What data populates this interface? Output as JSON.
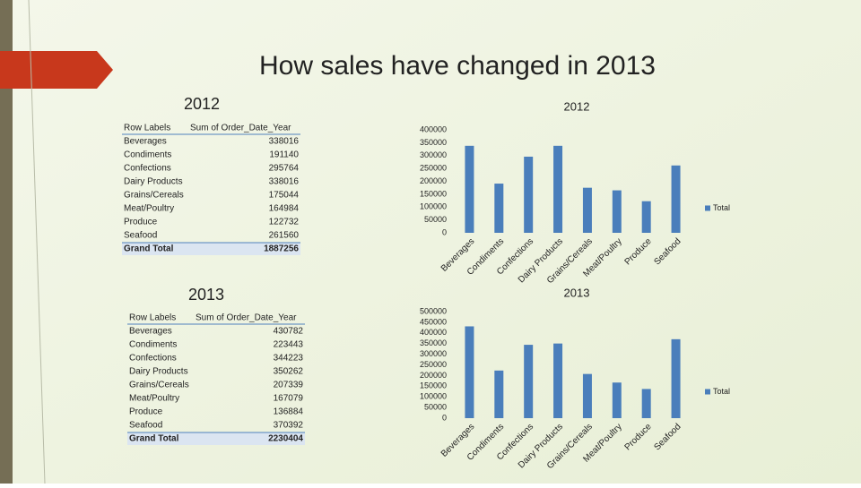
{
  "title": "How sales have changed in 2013",
  "tables": [
    {
      "heading": "2012",
      "header": [
        "Row Labels",
        "Sum of Order_Date_Year"
      ],
      "rows": [
        [
          "Beverages",
          338016
        ],
        [
          "Condiments",
          191140
        ],
        [
          "Confections",
          295764
        ],
        [
          "Dairy Products",
          338016
        ],
        [
          "Grains/Cereals",
          175044
        ],
        [
          "Meat/Poultry",
          164984
        ],
        [
          "Produce",
          122732
        ],
        [
          "Seafood",
          261560
        ],
        [
          "Grand Total",
          1887256
        ]
      ]
    },
    {
      "heading": "2013",
      "header": [
        "Row Labels",
        "Sum of Order_Date_Year"
      ],
      "rows": [
        [
          "Beverages",
          430782
        ],
        [
          "Condiments",
          223443
        ],
        [
          "Confections",
          344223
        ],
        [
          "Dairy Products",
          350262
        ],
        [
          "Grains/Cereals",
          207339
        ],
        [
          "Meat/Poultry",
          167079
        ],
        [
          "Produce",
          136884
        ],
        [
          "Seafood",
          370392
        ],
        [
          "Grand Total",
          2230404
        ]
      ]
    }
  ],
  "chart_data": [
    {
      "type": "bar",
      "title": "2012",
      "categories": [
        "Beverages",
        "Condiments",
        "Confections",
        "Dairy Products",
        "Grains/Cereals",
        "Meat/Poultry",
        "Produce",
        "Seafood"
      ],
      "series": [
        {
          "name": "Total",
          "color": "#4a7ebb",
          "values": [
            338016,
            191140,
            295764,
            338016,
            175044,
            164984,
            122732,
            261560
          ]
        }
      ],
      "ylim": [
        0,
        400000
      ],
      "yticks": [
        0,
        50000,
        100000,
        150000,
        200000,
        250000,
        300000,
        350000,
        400000
      ],
      "grid": false,
      "legend": "right"
    },
    {
      "type": "bar",
      "title": "2013",
      "categories": [
        "Beverages",
        "Condiments",
        "Confections",
        "Dairy Products",
        "Grains/Cereals",
        "Meat/Poultry",
        "Produce",
        "Seafood"
      ],
      "series": [
        {
          "name": "Total",
          "color": "#4a7ebb",
          "values": [
            430782,
            223443,
            344223,
            350262,
            207339,
            167079,
            136884,
            370392
          ]
        }
      ],
      "ylim": [
        0,
        500000
      ],
      "yticks": [
        0,
        50000,
        100000,
        150000,
        200000,
        250000,
        300000,
        350000,
        400000,
        450000,
        500000
      ],
      "grid": false,
      "legend": "right"
    }
  ]
}
